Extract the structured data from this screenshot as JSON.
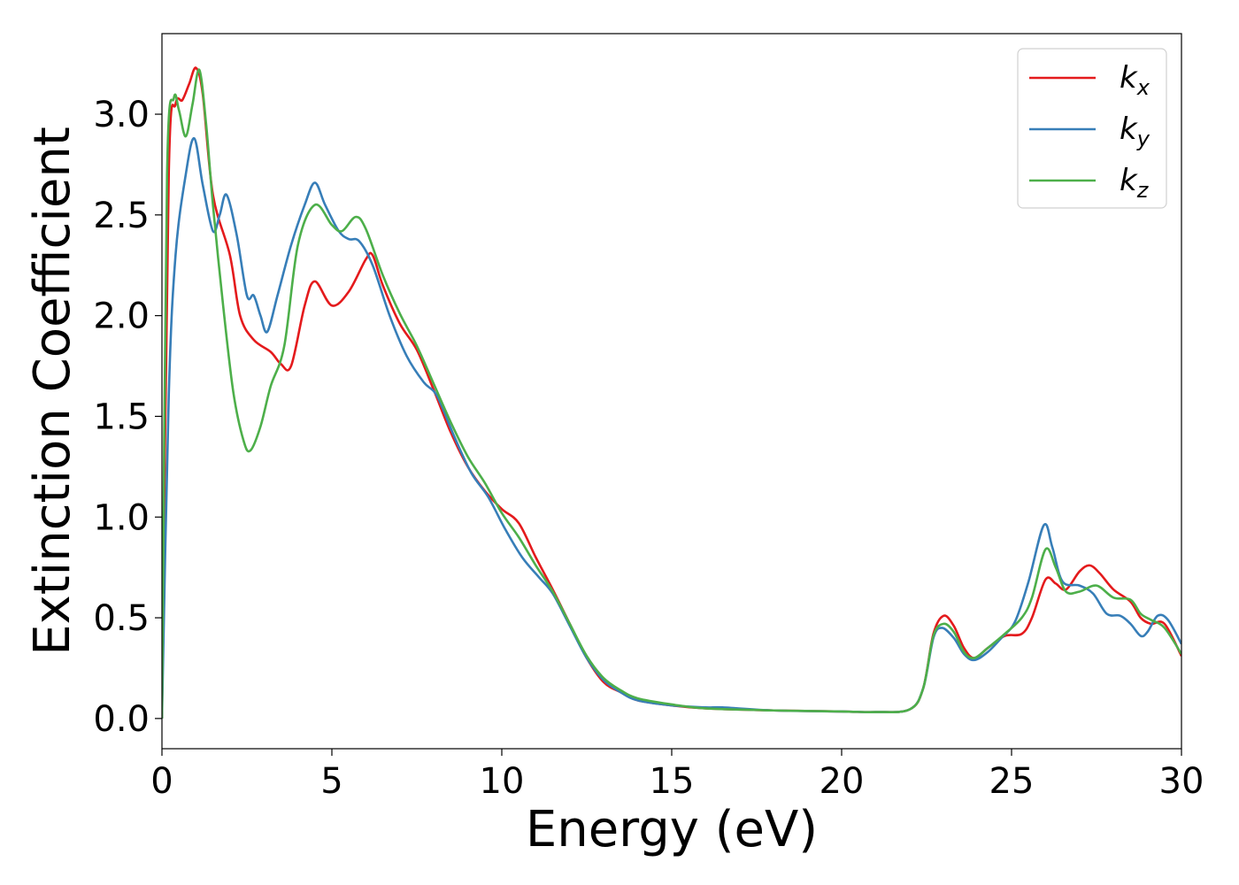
{
  "chart_data": {
    "type": "line",
    "title": "",
    "xlabel": "Energy (eV)",
    "ylabel": "Extinction Coefficient",
    "xlim": [
      0,
      30
    ],
    "ylim": [
      -0.15,
      3.4
    ],
    "xticks": [
      0,
      5,
      10,
      15,
      20,
      25,
      30
    ],
    "xtick_labels": [
      "0",
      "5",
      "10",
      "15",
      "20",
      "25",
      "30"
    ],
    "yticks": [
      0.0,
      0.5,
      1.0,
      1.5,
      2.0,
      2.5,
      3.0
    ],
    "ytick_labels": [
      "0.0",
      "0.5",
      "1.0",
      "1.5",
      "2.0",
      "2.5",
      "3.0"
    ],
    "grid": false,
    "legend_position": "top-right",
    "series": [
      {
        "name": "k",
        "subscript": "x",
        "color": "#e41a1c",
        "points": [
          [
            0,
            0
          ],
          [
            0.2,
            2.7
          ],
          [
            0.4,
            3.05
          ],
          [
            0.6,
            3.07
          ],
          [
            0.8,
            3.15
          ],
          [
            1.0,
            3.23
          ],
          [
            1.2,
            3.1
          ],
          [
            1.5,
            2.6
          ],
          [
            2.0,
            2.3
          ],
          [
            2.3,
            2.0
          ],
          [
            2.7,
            1.88
          ],
          [
            3.2,
            1.82
          ],
          [
            3.5,
            1.76
          ],
          [
            3.8,
            1.75
          ],
          [
            4.2,
            2.05
          ],
          [
            4.5,
            2.17
          ],
          [
            5.0,
            2.05
          ],
          [
            5.5,
            2.12
          ],
          [
            6.0,
            2.28
          ],
          [
            6.2,
            2.3
          ],
          [
            6.5,
            2.15
          ],
          [
            7.0,
            1.96
          ],
          [
            7.5,
            1.83
          ],
          [
            8.0,
            1.63
          ],
          [
            8.5,
            1.42
          ],
          [
            9.0,
            1.25
          ],
          [
            9.5,
            1.13
          ],
          [
            10.0,
            1.04
          ],
          [
            10.5,
            0.97
          ],
          [
            11.0,
            0.8
          ],
          [
            11.5,
            0.64
          ],
          [
            12.0,
            0.47
          ],
          [
            12.5,
            0.3
          ],
          [
            13.0,
            0.18
          ],
          [
            13.5,
            0.13
          ],
          [
            14.0,
            0.09
          ],
          [
            15.0,
            0.065
          ],
          [
            16.0,
            0.05
          ],
          [
            18.0,
            0.04
          ],
          [
            20.0,
            0.035
          ],
          [
            21.0,
            0.032
          ],
          [
            22.0,
            0.045
          ],
          [
            22.4,
            0.15
          ],
          [
            22.7,
            0.42
          ],
          [
            23.0,
            0.51
          ],
          [
            23.3,
            0.46
          ],
          [
            23.6,
            0.35
          ],
          [
            23.9,
            0.3
          ],
          [
            24.3,
            0.35
          ],
          [
            24.8,
            0.41
          ],
          [
            25.3,
            0.42
          ],
          [
            25.6,
            0.5
          ],
          [
            26.0,
            0.69
          ],
          [
            26.3,
            0.67
          ],
          [
            26.6,
            0.64
          ],
          [
            27.0,
            0.73
          ],
          [
            27.3,
            0.76
          ],
          [
            27.6,
            0.72
          ],
          [
            28.0,
            0.64
          ],
          [
            28.5,
            0.58
          ],
          [
            28.8,
            0.5
          ],
          [
            29.1,
            0.47
          ],
          [
            29.5,
            0.47
          ],
          [
            30.0,
            0.31
          ]
        ]
      },
      {
        "name": "k",
        "subscript": "y",
        "color": "#377eb8",
        "points": [
          [
            0,
            0
          ],
          [
            0.2,
            1.6
          ],
          [
            0.4,
            2.3
          ],
          [
            0.7,
            2.7
          ],
          [
            0.95,
            2.88
          ],
          [
            1.2,
            2.65
          ],
          [
            1.5,
            2.42
          ],
          [
            1.7,
            2.5
          ],
          [
            1.9,
            2.6
          ],
          [
            2.2,
            2.4
          ],
          [
            2.5,
            2.1
          ],
          [
            2.7,
            2.1
          ],
          [
            2.9,
            2.0
          ],
          [
            3.1,
            1.92
          ],
          [
            3.4,
            2.1
          ],
          [
            3.8,
            2.35
          ],
          [
            4.2,
            2.55
          ],
          [
            4.5,
            2.66
          ],
          [
            4.8,
            2.55
          ],
          [
            5.2,
            2.42
          ],
          [
            5.5,
            2.38
          ],
          [
            5.8,
            2.37
          ],
          [
            6.2,
            2.25
          ],
          [
            6.7,
            2.0
          ],
          [
            7.2,
            1.8
          ],
          [
            7.7,
            1.67
          ],
          [
            8.1,
            1.6
          ],
          [
            8.6,
            1.4
          ],
          [
            9.1,
            1.22
          ],
          [
            9.6,
            1.1
          ],
          [
            10.1,
            0.94
          ],
          [
            10.6,
            0.8
          ],
          [
            11.1,
            0.7
          ],
          [
            11.5,
            0.62
          ],
          [
            12.0,
            0.46
          ],
          [
            12.5,
            0.3
          ],
          [
            13.0,
            0.19
          ],
          [
            13.5,
            0.13
          ],
          [
            14.0,
            0.09
          ],
          [
            15.0,
            0.065
          ],
          [
            16.0,
            0.055
          ],
          [
            16.5,
            0.055
          ],
          [
            18.0,
            0.04
          ],
          [
            20.0,
            0.035
          ],
          [
            21.0,
            0.032
          ],
          [
            22.0,
            0.045
          ],
          [
            22.4,
            0.15
          ],
          [
            22.7,
            0.4
          ],
          [
            22.95,
            0.45
          ],
          [
            23.3,
            0.4
          ],
          [
            23.6,
            0.32
          ],
          [
            23.9,
            0.29
          ],
          [
            24.3,
            0.33
          ],
          [
            24.7,
            0.4
          ],
          [
            25.1,
            0.48
          ],
          [
            25.5,
            0.68
          ],
          [
            25.95,
            0.96
          ],
          [
            26.2,
            0.85
          ],
          [
            26.5,
            0.68
          ],
          [
            27.0,
            0.66
          ],
          [
            27.4,
            0.62
          ],
          [
            27.8,
            0.52
          ],
          [
            28.2,
            0.51
          ],
          [
            28.5,
            0.47
          ],
          [
            28.8,
            0.41
          ],
          [
            29.0,
            0.43
          ],
          [
            29.3,
            0.51
          ],
          [
            29.6,
            0.49
          ],
          [
            30.0,
            0.37
          ]
        ]
      },
      {
        "name": "k",
        "subscript": "z",
        "color": "#4daf4a",
        "points": [
          [
            0,
            0
          ],
          [
            0.15,
            2.7
          ],
          [
            0.35,
            3.08
          ],
          [
            0.5,
            3.02
          ],
          [
            0.7,
            2.89
          ],
          [
            0.9,
            3.05
          ],
          [
            1.1,
            3.22
          ],
          [
            1.3,
            2.95
          ],
          [
            1.5,
            2.55
          ],
          [
            1.8,
            2.05
          ],
          [
            2.1,
            1.62
          ],
          [
            2.4,
            1.38
          ],
          [
            2.6,
            1.33
          ],
          [
            2.9,
            1.45
          ],
          [
            3.2,
            1.65
          ],
          [
            3.6,
            1.85
          ],
          [
            4.0,
            2.35
          ],
          [
            4.5,
            2.55
          ],
          [
            5.0,
            2.45
          ],
          [
            5.3,
            2.42
          ],
          [
            5.7,
            2.49
          ],
          [
            6.0,
            2.43
          ],
          [
            6.5,
            2.2
          ],
          [
            7.0,
            2.01
          ],
          [
            7.5,
            1.85
          ],
          [
            8.0,
            1.66
          ],
          [
            8.5,
            1.47
          ],
          [
            9.0,
            1.3
          ],
          [
            9.5,
            1.17
          ],
          [
            10.0,
            1.02
          ],
          [
            10.5,
            0.9
          ],
          [
            11.0,
            0.76
          ],
          [
            11.5,
            0.63
          ],
          [
            12.0,
            0.47
          ],
          [
            12.5,
            0.31
          ],
          [
            13.0,
            0.2
          ],
          [
            13.5,
            0.14
          ],
          [
            14.0,
            0.1
          ],
          [
            15.0,
            0.07
          ],
          [
            16.0,
            0.05
          ],
          [
            18.0,
            0.04
          ],
          [
            20.0,
            0.035
          ],
          [
            21.0,
            0.032
          ],
          [
            22.0,
            0.045
          ],
          [
            22.4,
            0.15
          ],
          [
            22.7,
            0.41
          ],
          [
            23.0,
            0.47
          ],
          [
            23.3,
            0.43
          ],
          [
            23.6,
            0.33
          ],
          [
            23.9,
            0.3
          ],
          [
            24.3,
            0.35
          ],
          [
            24.8,
            0.42
          ],
          [
            25.3,
            0.5
          ],
          [
            25.6,
            0.6
          ],
          [
            26.0,
            0.84
          ],
          [
            26.3,
            0.75
          ],
          [
            26.6,
            0.63
          ],
          [
            27.0,
            0.63
          ],
          [
            27.5,
            0.66
          ],
          [
            28.0,
            0.6
          ],
          [
            28.5,
            0.59
          ],
          [
            28.8,
            0.52
          ],
          [
            29.1,
            0.49
          ],
          [
            29.5,
            0.45
          ],
          [
            30.0,
            0.32
          ]
        ]
      }
    ]
  }
}
